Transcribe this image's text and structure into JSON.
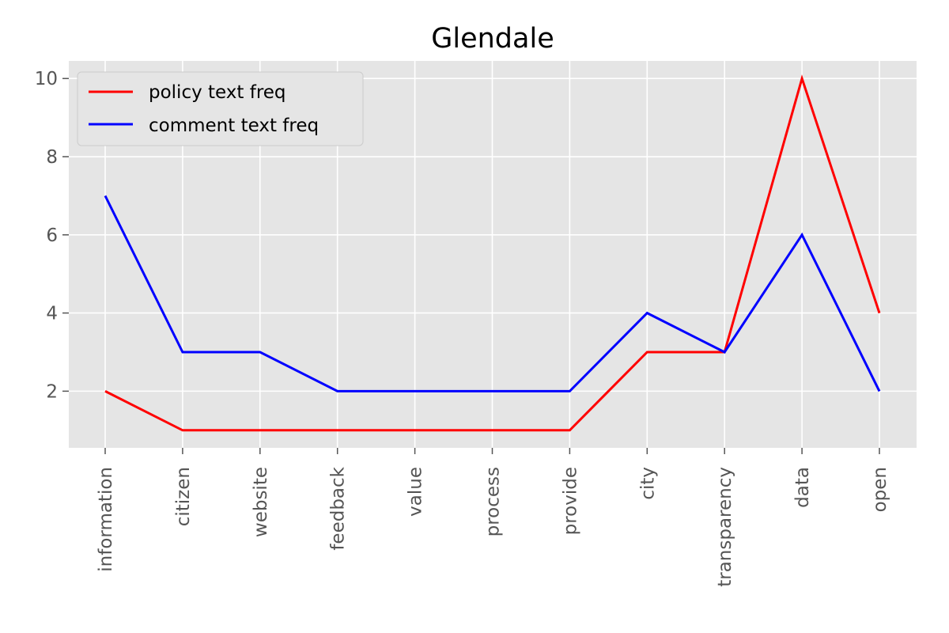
{
  "chart_data": {
    "type": "line",
    "title": "Glendale",
    "xlabel": "",
    "ylabel": "",
    "categories": [
      "information",
      "citizen",
      "website",
      "feedback",
      "value",
      "process",
      "provide",
      "city",
      "transparency",
      "data",
      "open"
    ],
    "series": [
      {
        "name": "policy text freq",
        "color": "#ff0000",
        "values": [
          2,
          1,
          1,
          1,
          1,
          1,
          1,
          3,
          3,
          10,
          4
        ]
      },
      {
        "name": "comment text freq",
        "color": "#0000ff",
        "values": [
          7,
          3,
          3,
          2,
          2,
          2,
          2,
          4,
          3,
          6,
          2
        ]
      }
    ],
    "yticks": [
      2,
      4,
      6,
      8,
      10
    ],
    "ylim": [
      0.55,
      10.45
    ],
    "grid": true,
    "legend": "upper-left",
    "style": {
      "background": "#e5e5e5",
      "grid_color": "#ffffff"
    }
  }
}
